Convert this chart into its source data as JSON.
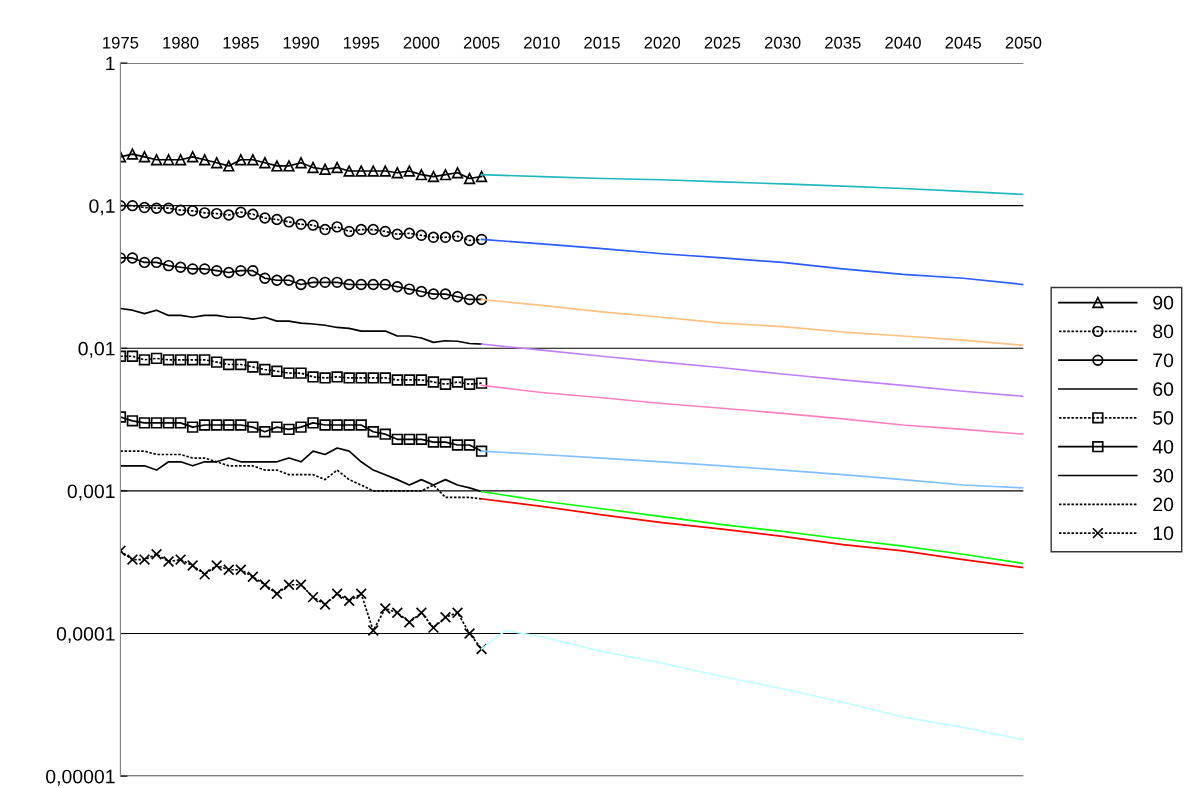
{
  "chart_data": {
    "type": "line",
    "log": "y",
    "grid": "y",
    "legend": "right",
    "x": [
      1975,
      1976,
      1977,
      1978,
      1979,
      1980,
      1981,
      1982,
      1983,
      1984,
      1985,
      1986,
      1987,
      1988,
      1989,
      1990,
      1991,
      1992,
      1993,
      1994,
      1995,
      1996,
      1997,
      1998,
      1999,
      2000,
      2001,
      2002,
      2003,
      2004,
      2005
    ],
    "xlim": [
      1975,
      2050
    ],
    "xticks": [
      1975,
      1980,
      1985,
      1990,
      1995,
      2000,
      2005,
      2010,
      2015,
      2020,
      2025,
      2030,
      2035,
      2040,
      2045,
      2050
    ],
    "ylim": [
      1e-05,
      1
    ],
    "yticks": [
      {
        "value": 1e-05,
        "label": "0,00001"
      },
      {
        "value": 0.0001,
        "label": "0,0001"
      },
      {
        "value": 0.001,
        "label": "0,001"
      },
      {
        "value": 0.01,
        "label": "0,01"
      },
      {
        "value": 0.1,
        "label": "0,1"
      },
      {
        "value": 1,
        "label": "1"
      }
    ],
    "series": [
      {
        "name": "90",
        "color": "#000000",
        "marker": "triangle",
        "line_style": "solid",
        "values": [
          0.22,
          0.23,
          0.22,
          0.21,
          0.21,
          0.21,
          0.22,
          0.21,
          0.2,
          0.19,
          0.21,
          0.21,
          0.2,
          0.19,
          0.19,
          0.2,
          0.185,
          0.18,
          0.185,
          0.175,
          0.175,
          0.175,
          0.175,
          0.17,
          0.175,
          0.165,
          0.16,
          0.165,
          0.17,
          0.155,
          0.16
        ]
      },
      {
        "name": "80",
        "color": "#000000",
        "marker": "circle",
        "line_style": "dotted",
        "values": [
          0.1,
          0.1,
          0.097,
          0.096,
          0.096,
          0.093,
          0.092,
          0.089,
          0.088,
          0.086,
          0.09,
          0.087,
          0.082,
          0.08,
          0.077,
          0.074,
          0.073,
          0.068,
          0.071,
          0.066,
          0.068,
          0.068,
          0.066,
          0.063,
          0.064,
          0.062,
          0.06,
          0.06,
          0.061,
          0.057,
          0.058
        ]
      },
      {
        "name": "70",
        "color": "#000000",
        "marker": "circle",
        "line_style": "solid",
        "values": [
          0.043,
          0.043,
          0.04,
          0.04,
          0.038,
          0.037,
          0.036,
          0.036,
          0.035,
          0.034,
          0.035,
          0.035,
          0.031,
          0.03,
          0.03,
          0.028,
          0.029,
          0.029,
          0.029,
          0.028,
          0.028,
          0.028,
          0.028,
          0.027,
          0.026,
          0.025,
          0.024,
          0.024,
          0.023,
          0.022,
          0.022
        ]
      },
      {
        "name": "60",
        "color": "#000000",
        "marker": "none",
        "line_style": "solid",
        "values": [
          0.019,
          0.0185,
          0.0175,
          0.0185,
          0.017,
          0.017,
          0.0165,
          0.017,
          0.017,
          0.0165,
          0.0165,
          0.016,
          0.0165,
          0.0155,
          0.0155,
          0.015,
          0.0148,
          0.0145,
          0.014,
          0.0138,
          0.0132,
          0.0132,
          0.0132,
          0.0122,
          0.0122,
          0.0118,
          0.011,
          0.0113,
          0.0112,
          0.0108,
          0.0107
        ]
      },
      {
        "name": "50",
        "color": "#000000",
        "marker": "square",
        "line_style": "dotted",
        "values": [
          0.0088,
          0.0088,
          0.0083,
          0.0085,
          0.0083,
          0.0083,
          0.0083,
          0.0083,
          0.008,
          0.0077,
          0.0077,
          0.0074,
          0.0071,
          0.0069,
          0.0067,
          0.0067,
          0.0063,
          0.0062,
          0.0063,
          0.0062,
          0.0062,
          0.0062,
          0.0062,
          0.006,
          0.006,
          0.006,
          0.0058,
          0.0056,
          0.0058,
          0.0056,
          0.0057
        ]
      },
      {
        "name": "40",
        "color": "#000000",
        "marker": "square",
        "line_style": "solid",
        "values": [
          0.0033,
          0.0031,
          0.003,
          0.003,
          0.003,
          0.003,
          0.0028,
          0.0029,
          0.0029,
          0.0029,
          0.0029,
          0.0028,
          0.0026,
          0.0028,
          0.0027,
          0.0028,
          0.003,
          0.0029,
          0.0029,
          0.0029,
          0.0029,
          0.0026,
          0.0025,
          0.0023,
          0.0023,
          0.0023,
          0.0022,
          0.0022,
          0.0021,
          0.0021,
          0.0019
        ]
      },
      {
        "name": "30",
        "color": "#000000",
        "marker": "none",
        "line_style": "solid",
        "values": [
          0.0015,
          0.0015,
          0.0015,
          0.0014,
          0.0016,
          0.0016,
          0.0015,
          0.0016,
          0.0016,
          0.0017,
          0.0016,
          0.0016,
          0.0016,
          0.0016,
          0.0017,
          0.0016,
          0.0019,
          0.0018,
          0.002,
          0.0019,
          0.0016,
          0.0014,
          0.0013,
          0.0012,
          0.0011,
          0.0012,
          0.0011,
          0.0012,
          0.0011,
          0.00105,
          0.00099
        ]
      },
      {
        "name": "20",
        "color": "#000000",
        "marker": "none",
        "line_style": "dotted",
        "values": [
          0.0019,
          0.0019,
          0.0019,
          0.0018,
          0.0018,
          0.0018,
          0.0017,
          0.0017,
          0.0016,
          0.0015,
          0.0015,
          0.0015,
          0.0014,
          0.0014,
          0.0013,
          0.0013,
          0.0013,
          0.0012,
          0.0014,
          0.0012,
          0.0011,
          0.001,
          0.001,
          0.001,
          0.001,
          0.001,
          0.0011,
          0.0009,
          0.0009,
          0.0009,
          0.00088
        ]
      },
      {
        "name": "10",
        "color": "#000000",
        "marker": "cross",
        "line_style": "dotted",
        "values": [
          0.00038,
          0.00033,
          0.00033,
          0.00036,
          0.00032,
          0.00033,
          0.0003,
          0.00026,
          0.0003,
          0.00028,
          0.00028,
          0.00025,
          0.00022,
          0.00019,
          0.00022,
          0.00022,
          0.00018,
          0.00016,
          0.00019,
          0.00017,
          0.00019,
          0.000105,
          0.00015,
          0.00014,
          0.00012,
          0.00014,
          0.00011,
          0.00013,
          0.00014,
          0.0001,
          7.8e-05
        ]
      },
      {
        "color": "#20b8c0",
        "x": [
          2005,
          2010,
          2015,
          2020,
          2025,
          2030,
          2035,
          2040,
          2045,
          2050
        ],
        "values": [
          0.165,
          0.16,
          0.155,
          0.152,
          0.147,
          0.142,
          0.137,
          0.132,
          0.126,
          0.12
        ]
      },
      {
        "color": "#2a5cff",
        "x": [
          2005,
          2010,
          2015,
          2020,
          2025,
          2030,
          2035,
          2040,
          2045,
          2050
        ],
        "values": [
          0.058,
          0.054,
          0.05,
          0.046,
          0.043,
          0.04,
          0.036,
          0.033,
          0.031,
          0.028
        ]
      },
      {
        "color": "#ffc080",
        "x": [
          2005,
          2010,
          2015,
          2020,
          2025,
          2030,
          2035,
          2040,
          2045,
          2050
        ],
        "values": [
          0.022,
          0.02,
          0.018,
          0.0165,
          0.015,
          0.0142,
          0.013,
          0.0122,
          0.0114,
          0.0105
        ]
      },
      {
        "color": "#c080ff",
        "x": [
          2005,
          2010,
          2015,
          2020,
          2025,
          2030,
          2035,
          2040,
          2045,
          2050
        ],
        "values": [
          0.0107,
          0.0097,
          0.0088,
          0.008,
          0.0073,
          0.0066,
          0.006,
          0.0055,
          0.005,
          0.0046
        ]
      },
      {
        "color": "#ff80c0",
        "x": [
          2005,
          2010,
          2015,
          2020,
          2025,
          2030,
          2035,
          2040,
          2045,
          2050
        ],
        "values": [
          0.0055,
          0.0049,
          0.0045,
          0.0041,
          0.0038,
          0.0035,
          0.0032,
          0.0029,
          0.0027,
          0.0025
        ]
      },
      {
        "color": "#80c0ff",
        "x": [
          2005,
          2010,
          2015,
          2020,
          2025,
          2030,
          2035,
          2040,
          2045,
          2050
        ],
        "values": [
          0.0019,
          0.0018,
          0.0017,
          0.0016,
          0.0015,
          0.0014,
          0.0013,
          0.0012,
          0.0011,
          0.00105
        ]
      },
      {
        "color": "#00ff00",
        "x": [
          2005,
          2010,
          2015,
          2020,
          2025,
          2030,
          2035,
          2040,
          2045,
          2050
        ],
        "values": [
          0.00099,
          0.00085,
          0.00075,
          0.00066,
          0.00058,
          0.00052,
          0.00046,
          0.00041,
          0.00036,
          0.00031
        ]
      },
      {
        "color": "#ff0000",
        "x": [
          2005,
          2010,
          2015,
          2020,
          2025,
          2030,
          2035,
          2040,
          2045,
          2050
        ],
        "values": [
          0.00088,
          0.00078,
          0.00068,
          0.0006,
          0.00054,
          0.00048,
          0.00042,
          0.00038,
          0.00033,
          0.00029
        ]
      },
      {
        "color": "#c0ffff",
        "x": [
          2005,
          2007,
          2010,
          2015,
          2020,
          2025,
          2030,
          2035,
          2040,
          2045,
          2050
        ],
        "values": [
          7.8e-05,
          0.000105,
          9.5e-05,
          7.5e-05,
          6.2e-05,
          5e-05,
          4.1e-05,
          3.3e-05,
          2.6e-05,
          2.2e-05,
          1.8e-05
        ]
      }
    ]
  }
}
